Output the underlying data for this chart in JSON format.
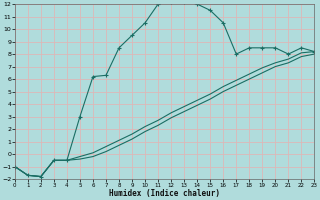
{
  "xlabel": "Humidex (Indice chaleur)",
  "bg_color": "#b0dcdc",
  "grid_color": "#ddb8b8",
  "line_color": "#1a6e64",
  "xlim": [
    0,
    23
  ],
  "ylim": [
    -2,
    12
  ],
  "xticks": [
    0,
    1,
    2,
    3,
    4,
    5,
    6,
    7,
    8,
    9,
    10,
    11,
    12,
    13,
    14,
    15,
    16,
    17,
    18,
    19,
    20,
    21,
    22,
    23
  ],
  "yticks": [
    -2,
    -1,
    0,
    1,
    2,
    3,
    4,
    5,
    6,
    7,
    8,
    9,
    10,
    11,
    12
  ],
  "curve1_x": [
    0,
    1,
    2,
    3,
    4,
    5,
    6,
    7,
    8,
    9,
    10,
    11,
    12,
    13,
    14,
    15,
    16,
    17,
    18,
    19,
    20,
    21,
    22,
    23
  ],
  "curve1_y": [
    -1,
    -1.7,
    -1.8,
    -0.5,
    -0.5,
    3.0,
    6.2,
    6.3,
    8.5,
    9.5,
    10.5,
    12.0,
    12.2,
    12.2,
    12.0,
    11.5,
    10.5,
    8.0,
    8.5,
    8.5,
    8.5,
    8.0,
    8.5,
    8.2
  ],
  "curve2_x": [
    0,
    1,
    2,
    3,
    4,
    5,
    6,
    7,
    8,
    9,
    10,
    11,
    12,
    13,
    14,
    15,
    16,
    17,
    18,
    19,
    20,
    21,
    22,
    23
  ],
  "curve2_y": [
    -1,
    -1.7,
    -1.8,
    -0.5,
    -0.5,
    -0.4,
    -0.2,
    0.2,
    0.7,
    1.2,
    1.8,
    2.3,
    2.9,
    3.4,
    3.9,
    4.4,
    5.0,
    5.5,
    6.0,
    6.5,
    7.0,
    7.3,
    7.8,
    8.0
  ],
  "curve3_x": [
    0,
    1,
    2,
    3,
    4,
    5,
    6,
    7,
    8,
    9,
    10,
    11,
    12,
    13,
    14,
    15,
    16,
    17,
    18,
    19,
    20,
    21,
    22,
    23
  ],
  "curve3_y": [
    -1,
    -1.7,
    -1.8,
    -0.5,
    -0.5,
    -0.2,
    0.1,
    0.6,
    1.1,
    1.6,
    2.2,
    2.7,
    3.3,
    3.8,
    4.3,
    4.8,
    5.4,
    5.9,
    6.4,
    6.9,
    7.3,
    7.6,
    8.1,
    8.2
  ]
}
